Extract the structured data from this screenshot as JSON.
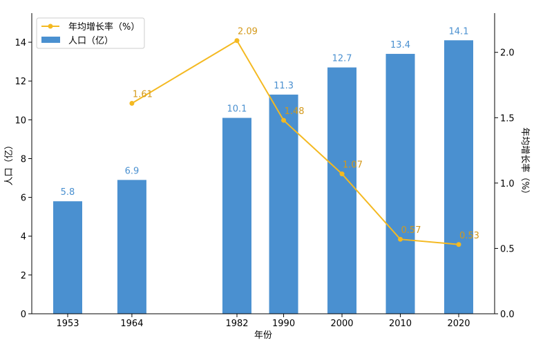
{
  "chart_data": {
    "type": "bar",
    "xlabel": "年份",
    "ylabel": "人口（亿）",
    "y2label": "年均增长率（%）",
    "x": [
      1953,
      1964,
      1982,
      1990,
      2000,
      2010,
      2020
    ],
    "x_ticks": [
      "1953",
      "1964",
      "1982",
      "1990",
      "2000",
      "2010",
      "2020"
    ],
    "ylim": [
      0,
      15.5
    ],
    "y_ticks": [
      0,
      2,
      4,
      6,
      8,
      10,
      12,
      14
    ],
    "y2lim": [
      0,
      2.3
    ],
    "y2_ticks": [
      "0.0",
      "0.5",
      "1.0",
      "1.5",
      "2.0"
    ],
    "grid": false,
    "legend_position": "top-left",
    "series": [
      {
        "name": "人口（亿）",
        "kind": "bar",
        "axis": "left",
        "color": "#4a90d0",
        "x": [
          1953,
          1964,
          1982,
          1990,
          2000,
          2010,
          2020
        ],
        "values": [
          5.8,
          6.9,
          10.1,
          11.3,
          12.7,
          13.4,
          14.1
        ],
        "labels": [
          "5.8",
          "6.9",
          "10.1",
          "11.3",
          "12.7",
          "13.4",
          "14.1"
        ]
      },
      {
        "name": "年均增长率（%）",
        "kind": "line",
        "axis": "right",
        "color": "#f4b921",
        "label_color": "#d4991a",
        "x": [
          1964,
          1982,
          1990,
          2000,
          2010,
          2020
        ],
        "values": [
          1.61,
          2.09,
          1.48,
          1.07,
          0.57,
          0.53
        ],
        "labels": [
          "1.61",
          "2.09",
          "1.48",
          "1.07",
          "0.57",
          "0.53"
        ]
      }
    ]
  }
}
